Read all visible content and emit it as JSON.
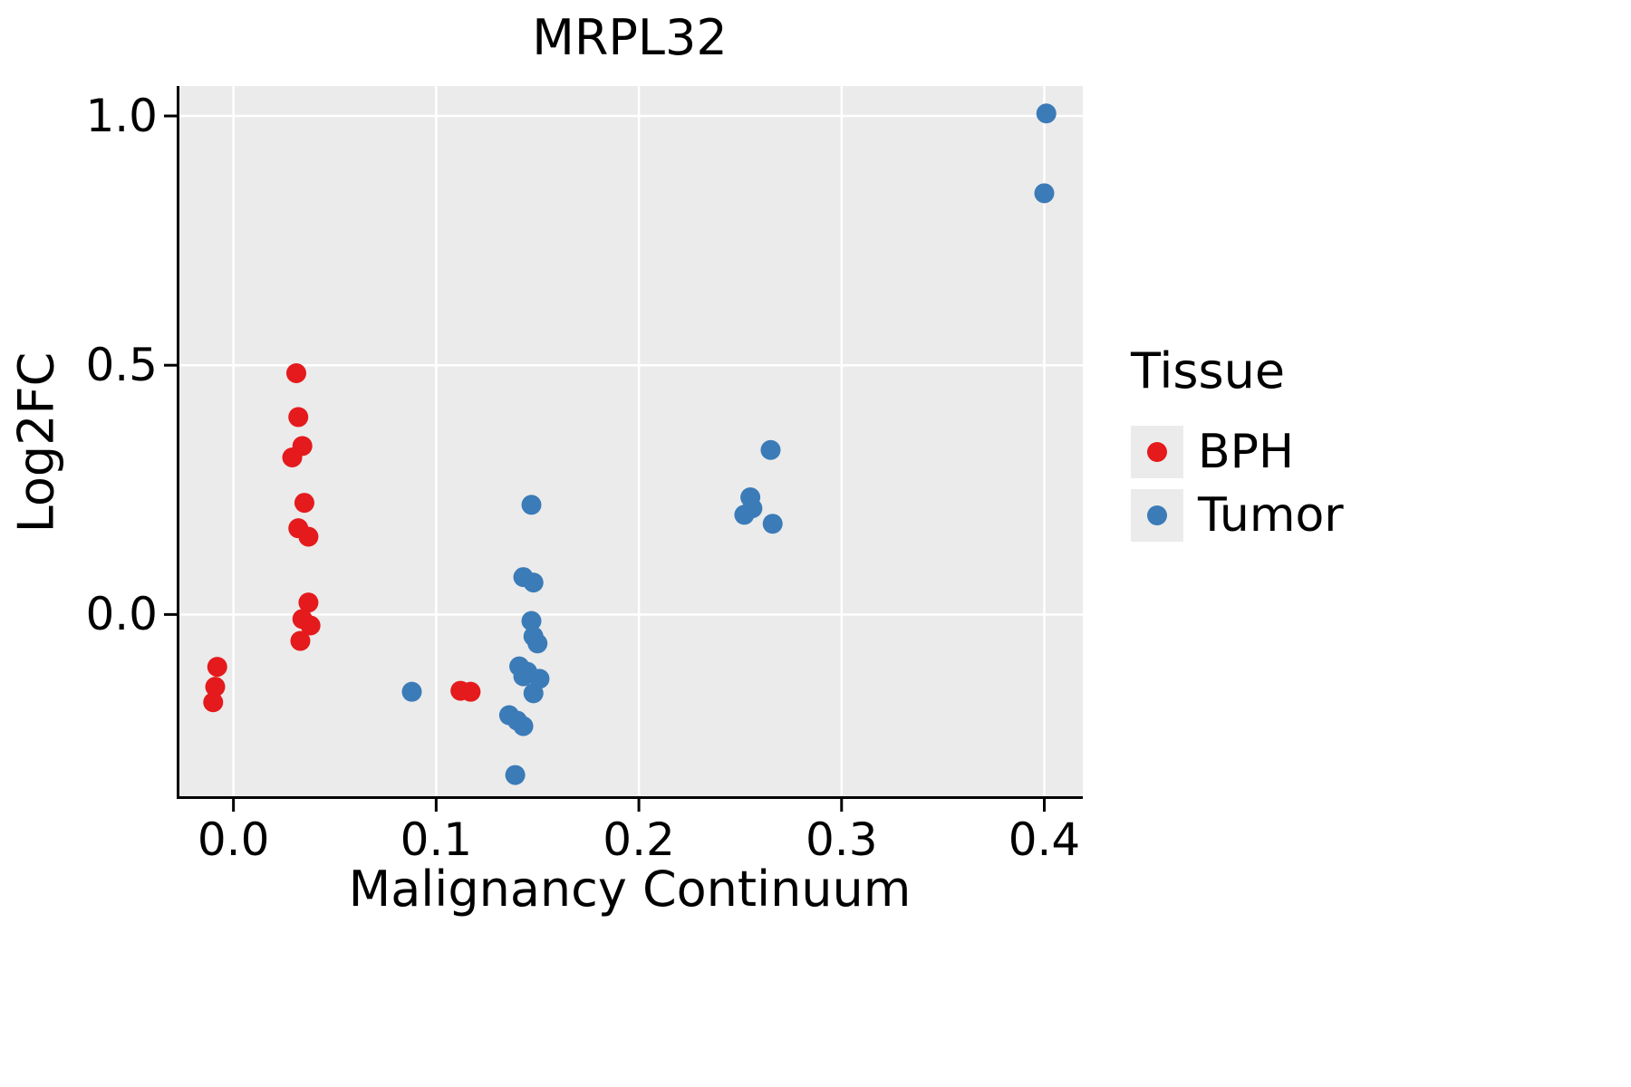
{
  "title": "MRPL32",
  "axes": {
    "x_label": "Malignancy Continuum",
    "y_label": "Log2FC",
    "x_ticks": [
      0.0,
      0.1,
      0.2,
      0.3,
      0.4
    ],
    "x_tick_labels": [
      "0.0",
      "0.1",
      "0.2",
      "0.3",
      "0.4"
    ],
    "y_ticks": [
      0.0,
      0.5,
      1.0
    ],
    "y_tick_labels": [
      "0.0",
      "0.5",
      "1.0"
    ]
  },
  "legend": {
    "title": "Tissue",
    "items": [
      {
        "label": "BPH",
        "color": "#E41A1C"
      },
      {
        "label": "Tumor",
        "color": "#3B7BB8"
      }
    ]
  },
  "colors": {
    "panel_background": "#EBEBEB",
    "gridline": "#FFFFFF",
    "axis": "#000000"
  },
  "chart_data": {
    "type": "scatter",
    "title": "MRPL32",
    "xlabel": "Malignancy Continuum",
    "ylabel": "Log2FC",
    "xlim": [
      -0.028,
      0.419
    ],
    "ylim": [
      -0.37,
      1.06
    ],
    "grid": true,
    "legend_position": "right",
    "legend_title": "Tissue",
    "point_radius_px": 11,
    "series": [
      {
        "name": "BPH",
        "color": "#E41A1C",
        "points": [
          [
            -0.008,
            -0.105
          ],
          [
            -0.009,
            -0.145
          ],
          [
            -0.01,
            -0.176
          ],
          [
            0.031,
            0.484
          ],
          [
            0.032,
            0.396
          ],
          [
            0.034,
            0.338
          ],
          [
            0.029,
            0.315
          ],
          [
            0.035,
            0.224
          ],
          [
            0.032,
            0.173
          ],
          [
            0.037,
            0.156
          ],
          [
            0.037,
            0.024
          ],
          [
            0.034,
            -0.009
          ],
          [
            0.038,
            -0.022
          ],
          [
            0.033,
            -0.053
          ],
          [
            0.112,
            -0.153
          ],
          [
            0.117,
            -0.155
          ]
        ]
      },
      {
        "name": "Tumor",
        "color": "#3B7BB8",
        "points": [
          [
            0.088,
            -0.155
          ],
          [
            0.147,
            0.22
          ],
          [
            0.143,
            0.075
          ],
          [
            0.148,
            0.064
          ],
          [
            0.147,
            -0.013
          ],
          [
            0.148,
            -0.044
          ],
          [
            0.15,
            -0.058
          ],
          [
            0.141,
            -0.104
          ],
          [
            0.145,
            -0.115
          ],
          [
            0.143,
            -0.124
          ],
          [
            0.151,
            -0.129
          ],
          [
            0.148,
            -0.158
          ],
          [
            0.136,
            -0.202
          ],
          [
            0.14,
            -0.213
          ],
          [
            0.143,
            -0.224
          ],
          [
            0.139,
            -0.322
          ],
          [
            0.265,
            0.33
          ],
          [
            0.255,
            0.235
          ],
          [
            0.256,
            0.213
          ],
          [
            0.252,
            0.2
          ],
          [
            0.266,
            0.182
          ],
          [
            0.401,
            1.005
          ],
          [
            0.4,
            0.845
          ]
        ]
      }
    ]
  }
}
